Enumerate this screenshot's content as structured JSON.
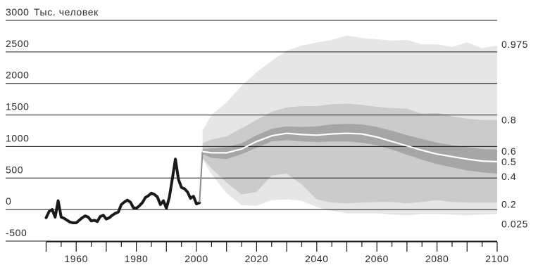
{
  "chart_data": {
    "type": "area",
    "unit_label": "Тыс. человек",
    "ylim": [
      -500,
      3000
    ],
    "xlim": [
      1948,
      2100
    ],
    "y_ticks": [
      {
        "value": 3000,
        "label": "3000"
      },
      {
        "value": 2500,
        "label": "2500"
      },
      {
        "value": 2000,
        "label": "2000"
      },
      {
        "value": 1500,
        "label": "1500"
      },
      {
        "value": 1000,
        "label": "1000"
      },
      {
        "value": 500,
        "label": "500"
      },
      {
        "value": 0,
        "label": "0"
      },
      {
        "value": -500,
        "label": "-500"
      }
    ],
    "x_ticks": [
      {
        "value": 1960,
        "label": "1960"
      },
      {
        "value": 1980,
        "label": "1980"
      },
      {
        "value": 2000,
        "label": "2000"
      },
      {
        "value": 2020,
        "label": "2020"
      },
      {
        "value": 2040,
        "label": "2040"
      },
      {
        "value": 2060,
        "label": "2060"
      },
      {
        "value": 2080,
        "label": "2080"
      },
      {
        "value": 2100,
        "label": "2100"
      }
    ],
    "x_minor_step": 5,
    "grid": true,
    "colors": {
      "band_outer": "#e6e6e6",
      "band_middle": "#cbcbcb",
      "band_inner": "#a6a6a6",
      "median": "#ffffff",
      "historical": "#1a1a1a"
    },
    "historical": {
      "x": [
        1950,
        1951,
        1952,
        1953,
        1954,
        1955,
        1956,
        1957,
        1958,
        1959,
        1960,
        1961,
        1962,
        1963,
        1964,
        1965,
        1966,
        1967,
        1968,
        1969,
        1970,
        1971,
        1972,
        1973,
        1974,
        1975,
        1976,
        1977,
        1978,
        1979,
        1980,
        1981,
        1982,
        1983,
        1984,
        1985,
        1986,
        1987,
        1988,
        1989,
        1990,
        1991,
        1992,
        1993,
        1994,
        1995,
        1996,
        1997,
        1998,
        1999,
        2000,
        2001
      ],
      "y": [
        -130,
        -30,
        0,
        -120,
        140,
        -120,
        -140,
        -170,
        -200,
        -210,
        -210,
        -170,
        -130,
        -100,
        -120,
        -180,
        -170,
        -190,
        -110,
        -90,
        -150,
        -130,
        -90,
        -60,
        -40,
        80,
        120,
        150,
        120,
        30,
        20,
        60,
        110,
        190,
        220,
        260,
        240,
        200,
        80,
        140,
        20,
        200,
        500,
        800,
        480,
        350,
        330,
        280,
        180,
        210,
        90,
        110
      ]
    },
    "forecast": {
      "x": [
        2002,
        2005,
        2010,
        2015,
        2020,
        2025,
        2030,
        2035,
        2040,
        2045,
        2050,
        2055,
        2060,
        2065,
        2070,
        2075,
        2080,
        2085,
        2090,
        2095,
        2100
      ],
      "series": [
        {
          "name": "0.975",
          "values": [
            1250,
            1500,
            1700,
            1960,
            2180,
            2360,
            2520,
            2600,
            2650,
            2690,
            2760,
            2720,
            2700,
            2680,
            2690,
            2620,
            2620,
            2580,
            2650,
            2560,
            2600
          ]
        },
        {
          "name": "0.8",
          "values": [
            1050,
            1110,
            1160,
            1290,
            1420,
            1550,
            1620,
            1640,
            1640,
            1670,
            1680,
            1660,
            1630,
            1610,
            1600,
            1520,
            1530,
            1480,
            1440,
            1420,
            1420
          ]
        },
        {
          "name": "0.6",
          "values": [
            960,
            970,
            990,
            1050,
            1180,
            1280,
            1320,
            1310,
            1320,
            1350,
            1360,
            1350,
            1310,
            1250,
            1180,
            1120,
            1060,
            1020,
            990,
            960,
            950
          ]
        },
        {
          "name": "0.5",
          "values": [
            920,
            900,
            900,
            960,
            1080,
            1170,
            1210,
            1190,
            1180,
            1200,
            1210,
            1200,
            1150,
            1080,
            1010,
            940,
            880,
            840,
            800,
            770,
            760
          ]
        },
        {
          "name": "0.4",
          "values": [
            880,
            820,
            800,
            880,
            980,
            1080,
            1100,
            1080,
            1070,
            1080,
            1080,
            1060,
            1020,
            950,
            870,
            790,
            720,
            670,
            620,
            590,
            570
          ]
        },
        {
          "name": "0.2",
          "values": [
            820,
            650,
            430,
            240,
            280,
            540,
            570,
            400,
            160,
            110,
            100,
            110,
            120,
            120,
            100,
            120,
            150,
            120,
            110,
            110,
            110
          ]
        },
        {
          "name": "0.025",
          "values": [
            800,
            560,
            260,
            70,
            60,
            150,
            160,
            140,
            40,
            -20,
            -60,
            -60,
            -60,
            -80,
            -90,
            -70,
            -70,
            -80,
            -90,
            -80,
            -70
          ]
        }
      ]
    }
  }
}
